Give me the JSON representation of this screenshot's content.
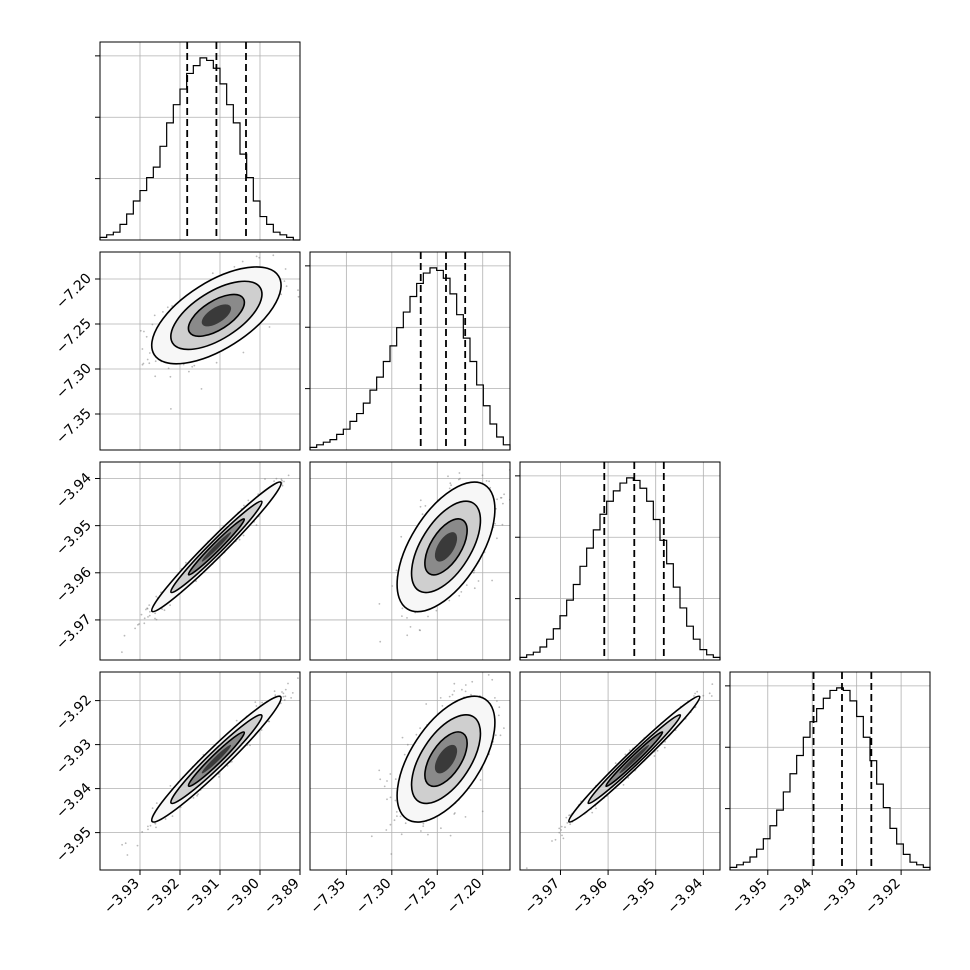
{
  "chart_data": {
    "type": "corner",
    "grid": true,
    "legend": "none",
    "colors": {
      "ink": "#000000",
      "grid": "#b0b0b0",
      "scatter": "#7f7f7f"
    },
    "parameters": [
      {
        "range": [
          -3.94,
          -3.89
        ],
        "ticks": [
          -3.93,
          -3.92,
          -3.91,
          -3.9,
          -3.89
        ],
        "tick_labels": [
          "−3.93",
          "−3.92",
          "−3.91",
          "−3.90",
          "−3.89"
        ],
        "quantiles": [
          -3.9182,
          -3.9109,
          -3.9035
        ],
        "hist": [
          1,
          2,
          3,
          6,
          10,
          15,
          19,
          24,
          28,
          36,
          45,
          52,
          58,
          64,
          67,
          70,
          69,
          66,
          60,
          52,
          45,
          33,
          24,
          15,
          9,
          6,
          3,
          2,
          1,
          0
        ],
        "hist_max": 70
      },
      {
        "range": [
          -7.39,
          -7.17
        ],
        "ticks": [
          -7.35,
          -7.3,
          -7.25,
          -7.2
        ],
        "tick_labels": [
          "−7.35",
          "−7.30",
          "−7.25",
          "−7.20"
        ],
        "quantiles": [
          -7.2682,
          -7.2404,
          -7.2193
        ],
        "hist": [
          1,
          2,
          3,
          4,
          6,
          8,
          11,
          14,
          18,
          23,
          28,
          34,
          40,
          47,
          53,
          59,
          64,
          68,
          70,
          69,
          66,
          60,
          52,
          43,
          34,
          25,
          17,
          10,
          5,
          2
        ],
        "hist_max": 70
      },
      {
        "range": [
          -3.9785,
          -3.9365
        ],
        "ticks": [
          -3.97,
          -3.96,
          -3.95,
          -3.94
        ],
        "tick_labels": [
          "−3.97",
          "−3.96",
          "−3.95",
          "−3.94"
        ],
        "quantiles": [
          -3.9608,
          -3.9545,
          -3.9483
        ],
        "hist": [
          1,
          2,
          3,
          5,
          8,
          12,
          17,
          23,
          29,
          36,
          43,
          50,
          56,
          61,
          65,
          68,
          70,
          69,
          66,
          61,
          54,
          46,
          37,
          28,
          20,
          13,
          8,
          4,
          2,
          1
        ],
        "hist_max": 70
      },
      {
        "range": [
          -3.9585,
          -3.9135
        ],
        "ticks": [
          -3.95,
          -3.94,
          -3.93,
          -3.92
        ],
        "tick_labels": [
          "−3.95",
          "−3.94",
          "−3.93",
          "−3.92"
        ],
        "quantiles": [
          -3.9397,
          -3.9333,
          -3.9267
        ],
        "hist": [
          1,
          2,
          3,
          5,
          8,
          12,
          17,
          23,
          30,
          37,
          44,
          51,
          57,
          62,
          66,
          69,
          70,
          69,
          65,
          59,
          51,
          42,
          33,
          24,
          16,
          10,
          6,
          3,
          2,
          1
        ],
        "hist_max": 70
      }
    ],
    "pairs": [
      {
        "x": 0,
        "y": 1,
        "correlation": 0.62
      },
      {
        "x": 0,
        "y": 2,
        "correlation": 0.98
      },
      {
        "x": 1,
        "y": 2,
        "correlation": 0.58
      },
      {
        "x": 0,
        "y": 3,
        "correlation": 0.97
      },
      {
        "x": 1,
        "y": 3,
        "correlation": 0.58
      },
      {
        "x": 2,
        "y": 3,
        "correlation": 0.985
      }
    ]
  }
}
